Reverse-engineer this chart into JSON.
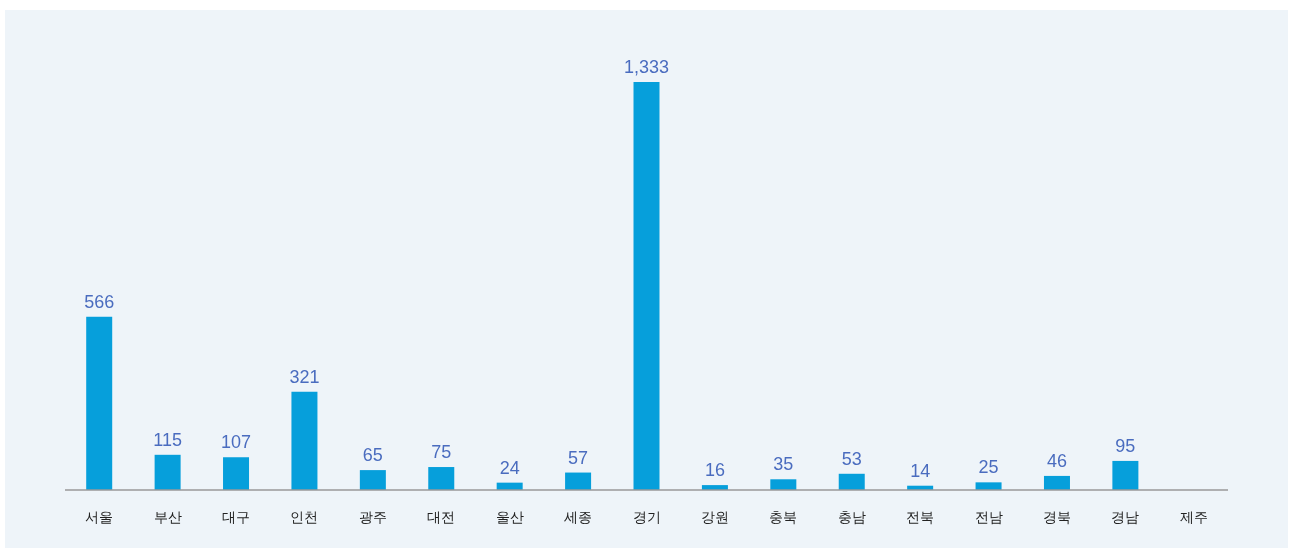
{
  "chart_data": {
    "type": "bar",
    "categories": [
      "서울",
      "부산",
      "대구",
      "인천",
      "광주",
      "대전",
      "울산",
      "세종",
      "경기",
      "강원",
      "충북",
      "충남",
      "전북",
      "전남",
      "경북",
      "경남",
      "제주"
    ],
    "values": [
      566,
      115,
      107,
      321,
      65,
      75,
      24,
      57,
      1333,
      16,
      35,
      53,
      14,
      25,
      46,
      95,
      null
    ],
    "value_labels": [
      "566",
      "115",
      "107",
      "321",
      "65",
      "75",
      "24",
      "57",
      "1,333",
      "16",
      "35",
      "53",
      "14",
      "25",
      "46",
      "95",
      null
    ],
    "color": "#069fdb"
  }
}
